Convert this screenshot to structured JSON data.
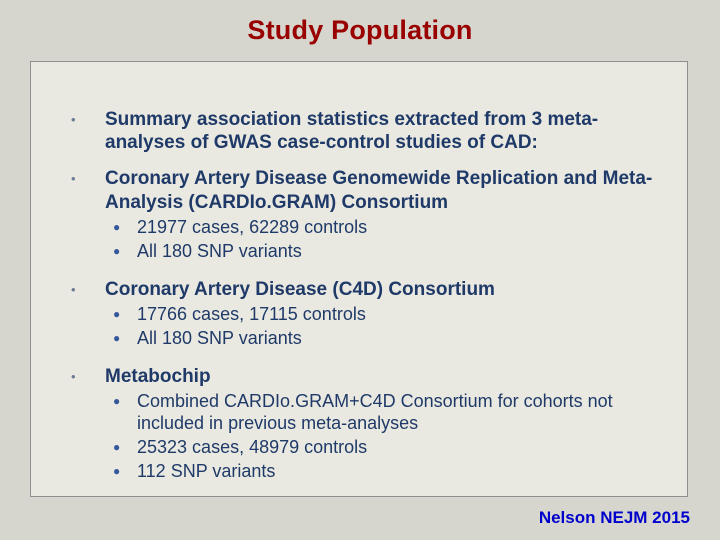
{
  "slide": {
    "title": "Study Population",
    "bullet_char": "•",
    "sub_bullet_char": "●",
    "credit": "Nelson NEJM 2015",
    "colors": {
      "title": "#990000",
      "body_text": "#1f3a68",
      "credit_text": "#0000cc",
      "page_background": "#d6d6ce",
      "box_background": "#e9e9e1",
      "box_border": "#8f8f8f"
    },
    "bullets": [
      {
        "text": "Summary association statistics extracted from 3 meta-analyses of GWAS case-control studies of CAD:"
      },
      {
        "text": "Coronary Artery Disease Genomewide Replication and Meta-Analysis (CARDIo.GRAM) Consortium",
        "subs": [
          "21977 cases, 62289 controls",
          "All 180 SNP variants"
        ]
      },
      {
        "text": "Coronary Artery Disease (C4D) Consortium",
        "subs": [
          "17766 cases, 17115 controls",
          "All 180 SNP variants"
        ]
      },
      {
        "text": "Metabochip",
        "subs": [
          "Combined CARDIo.GRAM+C4D Consortium for cohorts not included in previous meta-analyses",
          "25323 cases, 48979 controls",
          "112 SNP variants"
        ]
      }
    ]
  }
}
